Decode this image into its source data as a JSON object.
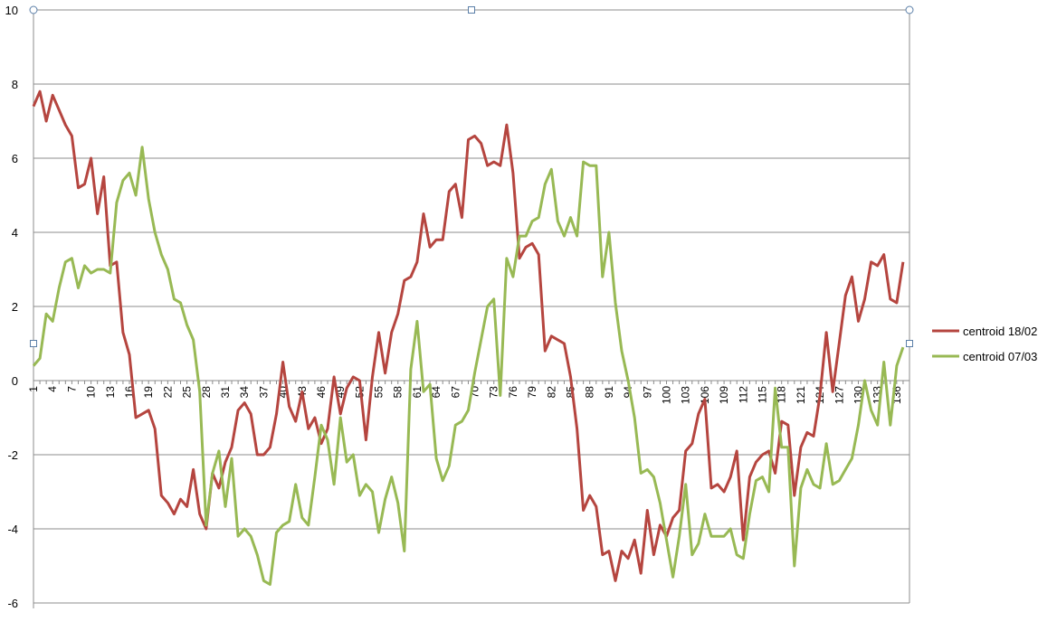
{
  "chart_data": {
    "type": "line",
    "title": "",
    "xlabel": "",
    "ylabel": "",
    "ylim": [
      -6,
      10
    ],
    "yticks": [
      -6,
      -4,
      -2,
      0,
      2,
      4,
      6,
      8,
      10
    ],
    "xlim": [
      1,
      138
    ],
    "xticks": [
      1,
      4,
      7,
      10,
      13,
      16,
      19,
      22,
      25,
      28,
      31,
      34,
      37,
      40,
      43,
      46,
      49,
      52,
      55,
      58,
      61,
      64,
      67,
      70,
      73,
      76,
      79,
      82,
      85,
      88,
      91,
      94,
      97,
      100,
      103,
      106,
      109,
      112,
      115,
      118,
      121,
      124,
      127,
      130,
      133,
      136
    ],
    "grid": true,
    "legend_position": "right",
    "series": [
      {
        "name": "centroid 18/02",
        "color": "#b5453f",
        "points": [
          [
            1,
            7.4
          ],
          [
            2,
            7.8
          ],
          [
            3,
            7.0
          ],
          [
            4,
            7.7
          ],
          [
            5,
            7.3
          ],
          [
            6,
            6.9
          ],
          [
            7,
            6.6
          ],
          [
            8,
            5.2
          ],
          [
            9,
            5.3
          ],
          [
            10,
            6.0
          ],
          [
            11,
            4.5
          ],
          [
            12,
            5.5
          ],
          [
            13,
            3.1
          ],
          [
            14,
            3.2
          ],
          [
            15,
            1.3
          ],
          [
            16,
            0.7
          ],
          [
            17,
            -1.0
          ],
          [
            18,
            -0.9
          ],
          [
            19,
            -0.8
          ],
          [
            20,
            -1.3
          ],
          [
            21,
            -3.1
          ],
          [
            22,
            -3.3
          ],
          [
            23,
            -3.6
          ],
          [
            24,
            -3.2
          ],
          [
            25,
            -3.4
          ],
          [
            26,
            -2.4
          ],
          [
            27,
            -3.6
          ],
          [
            28,
            -4.0
          ],
          [
            29,
            -2.5
          ],
          [
            30,
            -2.9
          ],
          [
            31,
            -2.2
          ],
          [
            32,
            -1.8
          ],
          [
            33,
            -0.8
          ],
          [
            34,
            -0.6
          ],
          [
            35,
            -0.9
          ],
          [
            36,
            -2.0
          ],
          [
            37,
            -2.0
          ],
          [
            38,
            -1.8
          ],
          [
            39,
            -0.9
          ],
          [
            40,
            0.5
          ],
          [
            41,
            -0.7
          ],
          [
            42,
            -1.1
          ],
          [
            43,
            -0.3
          ],
          [
            44,
            -1.3
          ],
          [
            45,
            -1.0
          ],
          [
            46,
            -1.7
          ],
          [
            47,
            -1.3
          ],
          [
            48,
            0.1
          ],
          [
            49,
            -0.9
          ],
          [
            50,
            -0.2
          ],
          [
            51,
            0.1
          ],
          [
            52,
            0.0
          ],
          [
            53,
            -1.6
          ],
          [
            54,
            0.1
          ],
          [
            55,
            1.3
          ],
          [
            56,
            0.2
          ],
          [
            57,
            1.3
          ],
          [
            58,
            1.8
          ],
          [
            59,
            2.7
          ],
          [
            60,
            2.8
          ],
          [
            61,
            3.2
          ],
          [
            62,
            4.5
          ],
          [
            63,
            3.6
          ],
          [
            64,
            3.8
          ],
          [
            65,
            3.8
          ],
          [
            66,
            5.1
          ],
          [
            67,
            5.3
          ],
          [
            68,
            4.4
          ],
          [
            69,
            6.5
          ],
          [
            70,
            6.6
          ],
          [
            71,
            6.4
          ],
          [
            72,
            5.8
          ],
          [
            73,
            5.9
          ],
          [
            74,
            5.8
          ],
          [
            75,
            6.9
          ],
          [
            76,
            5.6
          ],
          [
            77,
            3.3
          ],
          [
            78,
            3.6
          ],
          [
            79,
            3.7
          ],
          [
            80,
            3.4
          ],
          [
            81,
            0.8
          ],
          [
            82,
            1.2
          ],
          [
            83,
            1.1
          ],
          [
            84,
            1.0
          ],
          [
            85,
            0.1
          ],
          [
            86,
            -1.3
          ],
          [
            87,
            -3.5
          ],
          [
            88,
            -3.1
          ],
          [
            89,
            -3.4
          ],
          [
            90,
            -4.7
          ],
          [
            91,
            -4.6
          ],
          [
            92,
            -5.4
          ],
          [
            93,
            -4.6
          ],
          [
            94,
            -4.8
          ],
          [
            95,
            -4.3
          ],
          [
            96,
            -5.2
          ],
          [
            97,
            -3.5
          ],
          [
            98,
            -4.7
          ],
          [
            99,
            -3.9
          ],
          [
            100,
            -4.2
          ],
          [
            101,
            -3.7
          ],
          [
            102,
            -3.5
          ],
          [
            103,
            -1.9
          ],
          [
            104,
            -1.7
          ],
          [
            105,
            -0.9
          ],
          [
            106,
            -0.5
          ],
          [
            107,
            -2.9
          ],
          [
            108,
            -2.8
          ],
          [
            109,
            -3.0
          ],
          [
            110,
            -2.6
          ],
          [
            111,
            -1.9
          ],
          [
            112,
            -4.3
          ],
          [
            113,
            -2.6
          ],
          [
            114,
            -2.2
          ],
          [
            115,
            -2.0
          ],
          [
            116,
            -1.9
          ],
          [
            117,
            -2.5
          ],
          [
            118,
            -1.1
          ],
          [
            119,
            -1.2
          ],
          [
            120,
            -3.1
          ],
          [
            121,
            -1.8
          ],
          [
            122,
            -1.4
          ],
          [
            123,
            -1.5
          ],
          [
            124,
            -0.4
          ],
          [
            125,
            1.3
          ],
          [
            126,
            -0.3
          ],
          [
            127,
            1.0
          ],
          [
            128,
            2.3
          ],
          [
            129,
            2.8
          ],
          [
            130,
            1.6
          ],
          [
            131,
            2.2
          ],
          [
            132,
            3.2
          ],
          [
            133,
            3.1
          ],
          [
            134,
            3.4
          ],
          [
            135,
            2.2
          ],
          [
            136,
            2.1
          ],
          [
            137,
            3.2
          ]
        ]
      },
      {
        "name": "centroid 07/03",
        "color": "#98b954",
        "points": [
          [
            1,
            0.4
          ],
          [
            2,
            0.6
          ],
          [
            3,
            1.8
          ],
          [
            4,
            1.6
          ],
          [
            5,
            2.5
          ],
          [
            6,
            3.2
          ],
          [
            7,
            3.3
          ],
          [
            8,
            2.5
          ],
          [
            9,
            3.1
          ],
          [
            10,
            2.9
          ],
          [
            11,
            3.0
          ],
          [
            12,
            3.0
          ],
          [
            13,
            2.9
          ],
          [
            14,
            4.8
          ],
          [
            15,
            5.4
          ],
          [
            16,
            5.6
          ],
          [
            17,
            5.0
          ],
          [
            18,
            6.3
          ],
          [
            19,
            4.9
          ],
          [
            20,
            4.0
          ],
          [
            21,
            3.4
          ],
          [
            22,
            3.0
          ],
          [
            23,
            2.2
          ],
          [
            24,
            2.1
          ],
          [
            25,
            1.5
          ],
          [
            26,
            1.1
          ],
          [
            27,
            -0.3
          ],
          [
            28,
            -3.9
          ],
          [
            29,
            -2.5
          ],
          [
            30,
            -1.9
          ],
          [
            31,
            -3.4
          ],
          [
            32,
            -2.1
          ],
          [
            33,
            -4.2
          ],
          [
            34,
            -4.0
          ],
          [
            35,
            -4.2
          ],
          [
            36,
            -4.7
          ],
          [
            37,
            -5.4
          ],
          [
            38,
            -5.5
          ],
          [
            39,
            -4.1
          ],
          [
            40,
            -3.9
          ],
          [
            41,
            -3.8
          ],
          [
            42,
            -2.8
          ],
          [
            43,
            -3.7
          ],
          [
            44,
            -3.9
          ],
          [
            45,
            -2.6
          ],
          [
            46,
            -1.2
          ],
          [
            47,
            -1.6
          ],
          [
            48,
            -2.8
          ],
          [
            49,
            -1.0
          ],
          [
            50,
            -2.2
          ],
          [
            51,
            -2.0
          ],
          [
            52,
            -3.1
          ],
          [
            53,
            -2.8
          ],
          [
            54,
            -3.0
          ],
          [
            55,
            -4.1
          ],
          [
            56,
            -3.2
          ],
          [
            57,
            -2.6
          ],
          [
            58,
            -3.3
          ],
          [
            59,
            -4.6
          ],
          [
            60,
            0.3
          ],
          [
            61,
            1.6
          ],
          [
            62,
            -0.3
          ],
          [
            63,
            -0.1
          ],
          [
            64,
            -2.1
          ],
          [
            65,
            -2.7
          ],
          [
            66,
            -2.3
          ],
          [
            67,
            -1.2
          ],
          [
            68,
            -1.1
          ],
          [
            69,
            -0.8
          ],
          [
            70,
            0.2
          ],
          [
            71,
            1.1
          ],
          [
            72,
            2.0
          ],
          [
            73,
            2.2
          ],
          [
            74,
            -0.4
          ],
          [
            75,
            3.3
          ],
          [
            76,
            2.8
          ],
          [
            77,
            3.9
          ],
          [
            78,
            3.9
          ],
          [
            79,
            4.3
          ],
          [
            80,
            4.4
          ],
          [
            81,
            5.3
          ],
          [
            82,
            5.7
          ],
          [
            83,
            4.3
          ],
          [
            84,
            3.9
          ],
          [
            85,
            4.4
          ],
          [
            86,
            3.9
          ],
          [
            87,
            5.9
          ],
          [
            88,
            5.8
          ],
          [
            89,
            5.8
          ],
          [
            90,
            2.8
          ],
          [
            91,
            4.0
          ],
          [
            92,
            2.1
          ],
          [
            93,
            0.8
          ],
          [
            94,
            0.0
          ],
          [
            95,
            -1.0
          ],
          [
            96,
            -2.5
          ],
          [
            97,
            -2.4
          ],
          [
            98,
            -2.6
          ],
          [
            99,
            -3.3
          ],
          [
            100,
            -4.3
          ],
          [
            101,
            -5.3
          ],
          [
            102,
            -4.2
          ],
          [
            103,
            -2.8
          ],
          [
            104,
            -4.7
          ],
          [
            105,
            -4.4
          ],
          [
            106,
            -3.6
          ],
          [
            107,
            -4.2
          ],
          [
            108,
            -4.2
          ],
          [
            109,
            -4.2
          ],
          [
            110,
            -4.0
          ],
          [
            111,
            -4.7
          ],
          [
            112,
            -4.8
          ],
          [
            113,
            -3.6
          ],
          [
            114,
            -2.7
          ],
          [
            115,
            -2.6
          ],
          [
            116,
            -3.0
          ],
          [
            117,
            -0.2
          ],
          [
            118,
            -1.8
          ],
          [
            119,
            -1.8
          ],
          [
            120,
            -5.0
          ],
          [
            121,
            -2.9
          ],
          [
            122,
            -2.4
          ],
          [
            123,
            -2.8
          ],
          [
            124,
            -2.9
          ],
          [
            125,
            -1.7
          ],
          [
            126,
            -2.8
          ],
          [
            127,
            -2.7
          ],
          [
            128,
            -2.4
          ],
          [
            129,
            -2.1
          ],
          [
            130,
            -1.2
          ],
          [
            131,
            0.0
          ],
          [
            132,
            -0.8
          ],
          [
            133,
            -1.2
          ],
          [
            134,
            0.5
          ],
          [
            135,
            -1.2
          ],
          [
            136,
            0.4
          ],
          [
            137,
            0.9
          ]
        ]
      }
    ]
  }
}
